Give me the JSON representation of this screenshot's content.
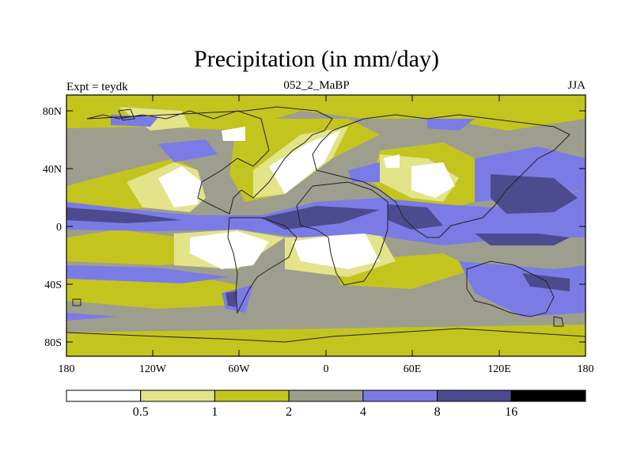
{
  "map": {
    "title": "Precipitation (in mm/day)",
    "left_label": "Expt = teydk",
    "center_label": "052_2_MaBP",
    "right_label": "JJA",
    "lat_ticks": [
      "80N",
      "40N",
      "0",
      "40S",
      "80S"
    ],
    "lon_ticks": [
      "180",
      "120W",
      "60W",
      "0",
      "60E",
      "120E",
      "180"
    ]
  },
  "legend": {
    "levels": [
      "0.5",
      "1",
      "2",
      "4",
      "8",
      "16"
    ],
    "colors": [
      "#ffffff",
      "#e3e38a",
      "#c4c41f",
      "#9e9e8e",
      "#7b7be6",
      "#4b4b8e",
      "#000000"
    ]
  }
}
